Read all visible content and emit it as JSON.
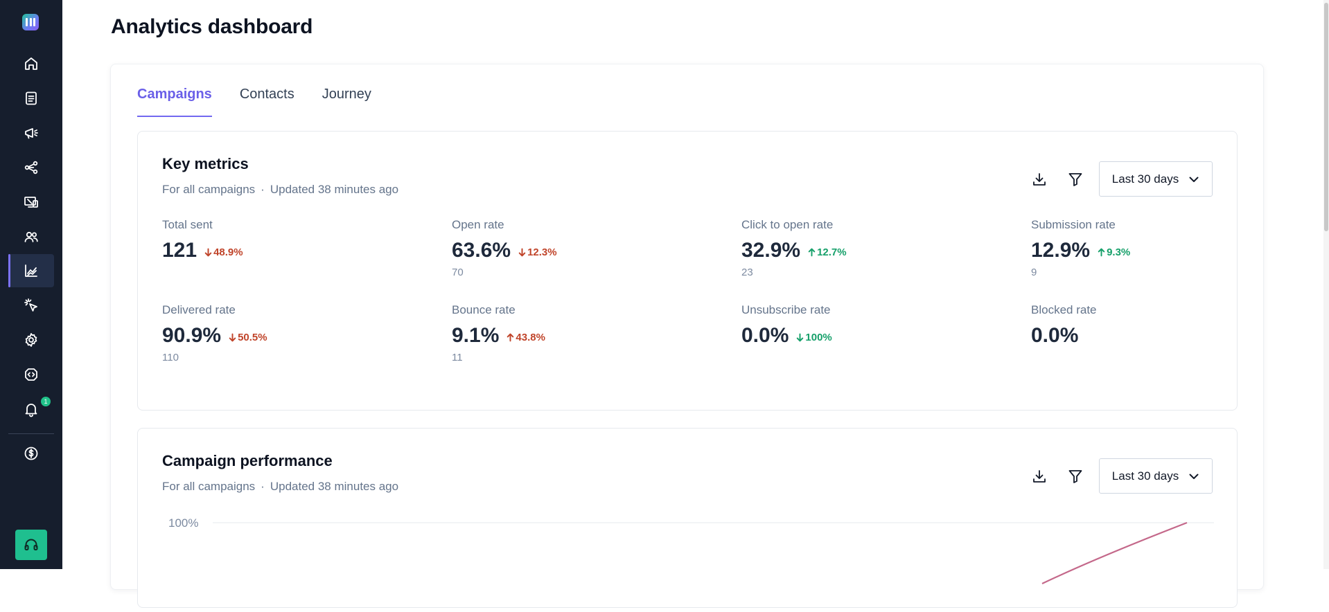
{
  "page": {
    "title": "Analytics dashboard"
  },
  "sidebar": {
    "items": [
      {
        "icon": "home-icon"
      },
      {
        "icon": "list-icon"
      },
      {
        "icon": "megaphone-icon"
      },
      {
        "icon": "share-nodes-icon"
      },
      {
        "icon": "devices-icon"
      },
      {
        "icon": "users-icon"
      },
      {
        "icon": "chart-icon",
        "active": true
      },
      {
        "icon": "cursor-click-icon"
      },
      {
        "icon": "gear-icon"
      },
      {
        "icon": "code-icon"
      },
      {
        "icon": "bell-icon",
        "badge": "1"
      },
      {
        "icon": "dollar-icon"
      }
    ],
    "support_icon": "headphones-icon"
  },
  "tabs": [
    {
      "label": "Campaigns",
      "active": true
    },
    {
      "label": "Contacts"
    },
    {
      "label": "Journey"
    }
  ],
  "key_metrics": {
    "title": "Key metrics",
    "scope": "For all campaigns",
    "separator": "·",
    "updated": "Updated 38 minutes ago",
    "range": "Last 30 days",
    "metrics": [
      {
        "label": "Total sent",
        "value": "121",
        "trend": "48.9%",
        "direction": "down",
        "sub": ""
      },
      {
        "label": "Open rate",
        "value": "63.6%",
        "trend": "12.3%",
        "direction": "down",
        "sub": "70"
      },
      {
        "label": "Click to open rate",
        "value": "32.9%",
        "trend": "12.7%",
        "direction": "up",
        "sub": "23"
      },
      {
        "label": "Submission rate",
        "value": "12.9%",
        "trend": "9.3%",
        "direction": "up",
        "sub": "9"
      },
      {
        "label": "Delivered rate",
        "value": "90.9%",
        "trend": "50.5%",
        "direction": "down",
        "sub": "110"
      },
      {
        "label": "Bounce rate",
        "value": "9.1%",
        "trend": "43.8%",
        "direction": "up-bad",
        "sub": "11"
      },
      {
        "label": "Unsubscribe rate",
        "value": "0.0%",
        "trend": "100%",
        "direction": "down-good",
        "sub": ""
      },
      {
        "label": "Blocked rate",
        "value": "0.0%",
        "trend": "",
        "direction": "",
        "sub": ""
      }
    ]
  },
  "campaign_performance": {
    "title": "Campaign performance",
    "scope": "For all campaigns",
    "separator": "·",
    "updated": "Updated 38 minutes ago",
    "range": "Last 30 days",
    "y_tick_top": "100%",
    "line_color": "#c4688a"
  },
  "colors": {
    "accent": "#6a5fe8",
    "sidebar": "#161e2d",
    "trend_down": "#c0442a",
    "trend_up": "#16a06a"
  }
}
